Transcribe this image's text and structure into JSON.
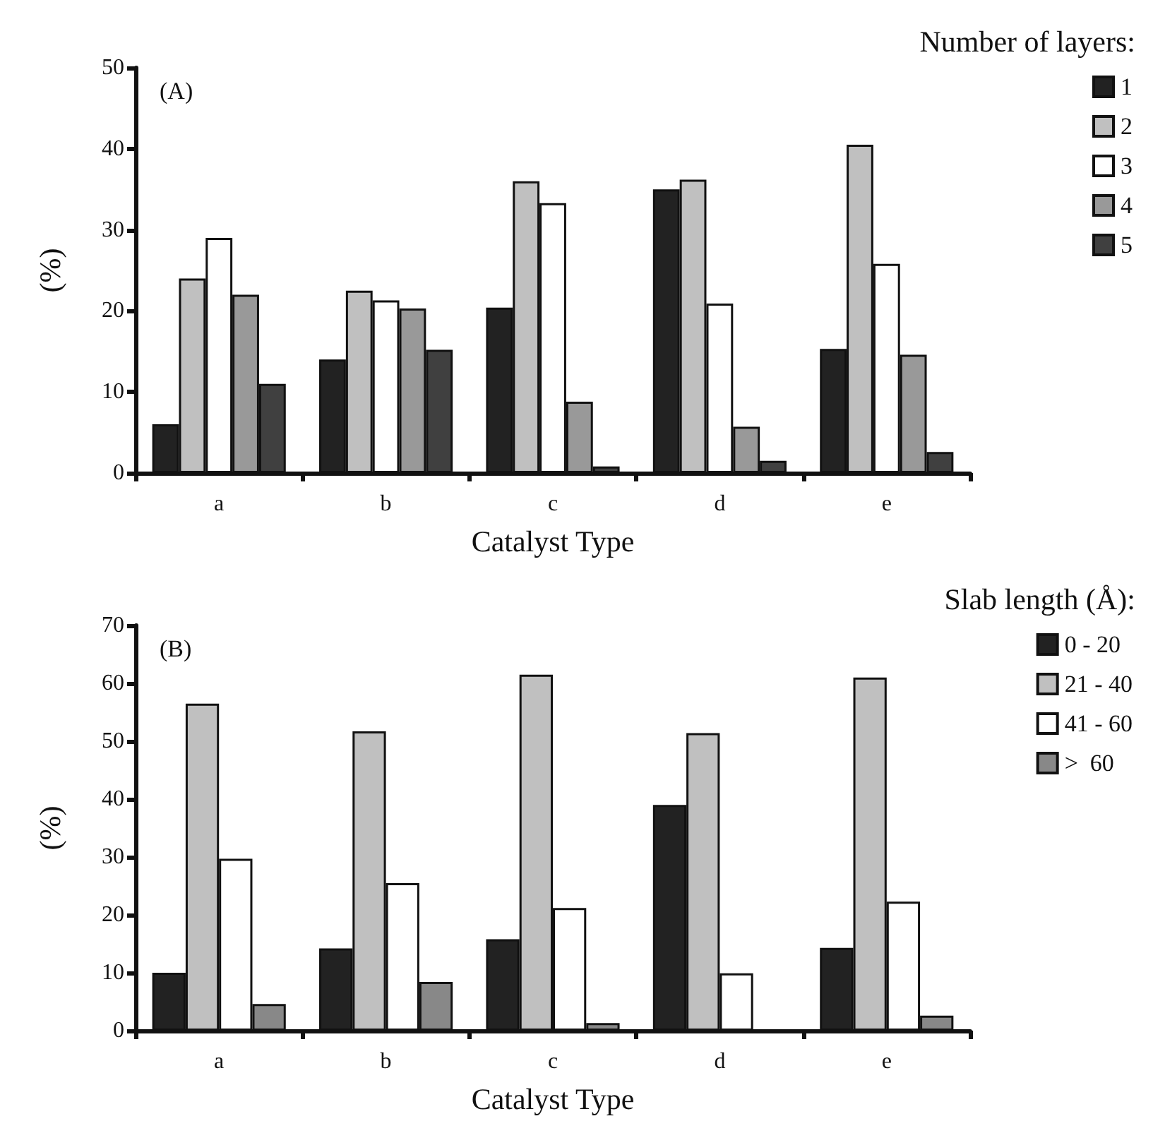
{
  "chart_data": [
    {
      "type": "bar",
      "xlabel": "Catalyst Type",
      "ylabel": "(%)",
      "legend_title": "Number of layers:",
      "annotations": [
        "(A)"
      ],
      "categories": [
        "a",
        "b",
        "c",
        "d",
        "e"
      ],
      "series": [
        {
          "name": "1",
          "color": "#222222",
          "values": [
            6,
            14,
            20.4,
            35,
            15.3
          ]
        },
        {
          "name": "2",
          "color": "#c0c0c0",
          "values": [
            24,
            22.5,
            36,
            36.2,
            40.5
          ]
        },
        {
          "name": "3",
          "color": "#ffffff",
          "values": [
            29,
            21.3,
            33.3,
            20.9,
            25.8
          ]
        },
        {
          "name": "4",
          "color": "#999999",
          "values": [
            22,
            20.3,
            8.8,
            5.7,
            14.6
          ]
        },
        {
          "name": "5",
          "color": "#404040",
          "values": [
            11,
            15.2,
            0.8,
            1.5,
            2.6
          ]
        }
      ],
      "ylim": [
        0,
        50
      ],
      "yticks": [
        0,
        10,
        20,
        30,
        40,
        50
      ],
      "grid": false,
      "legend": "top right"
    },
    {
      "type": "bar",
      "xlabel": "Catalyst Type",
      "ylabel": "(%)",
      "legend_title": "Slab length (Å):",
      "annotations": [
        "(B)"
      ],
      "categories": [
        "a",
        "b",
        "c",
        "d",
        "e"
      ],
      "series": [
        {
          "name": "0 - 20",
          "color": "#222222",
          "values": [
            10,
            14.2,
            15.8,
            39,
            14.3
          ]
        },
        {
          "name": "21 - 40",
          "color": "#c0c0c0",
          "values": [
            56.5,
            51.7,
            61.5,
            51.4,
            61
          ]
        },
        {
          "name": "41 - 60",
          "color": "#ffffff",
          "values": [
            29.7,
            25.5,
            21.2,
            9.9,
            22.3
          ]
        },
        {
          "name": ">  60",
          "color": "#888888",
          "values": [
            4.6,
            8.4,
            1.3,
            null,
            2.6
          ]
        }
      ],
      "ylim": [
        0,
        70
      ],
      "yticks": [
        0,
        10,
        20,
        30,
        40,
        50,
        60,
        70
      ],
      "grid": false,
      "legend": "top right"
    }
  ]
}
